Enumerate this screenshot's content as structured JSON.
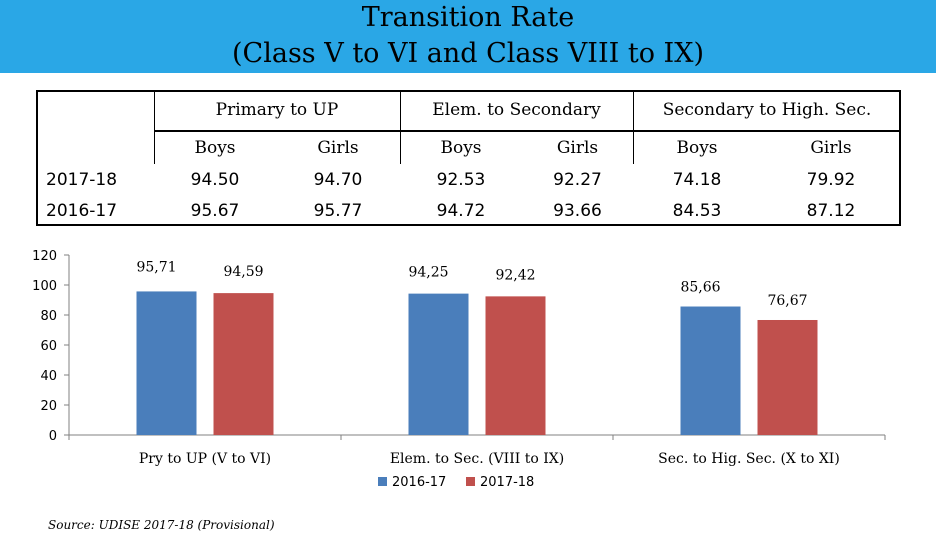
{
  "title": {
    "line1": "Transition Rate",
    "line2": "(Class V to VI and Class VIII to IX)"
  },
  "table": {
    "groups": [
      "Primary to UP",
      "Elem. to Secondary",
      "Secondary to High. Sec."
    ],
    "subheaders": [
      "Boys",
      "Girls",
      "Boys",
      "Girls",
      "Boys",
      "Girls"
    ],
    "rows": [
      {
        "year": "2017-18",
        "values": [
          "94.50",
          "94.70",
          "92.53",
          "92.27",
          "74.18",
          "79.92"
        ]
      },
      {
        "year": "2016-17",
        "values": [
          "95.67",
          "95.77",
          "94.72",
          "93.66",
          "84.53",
          "87.12"
        ]
      }
    ]
  },
  "chart_data": {
    "type": "bar",
    "categories": [
      "Pry to UP (V to VI)",
      "Elem. to Sec. (VIII to IX)",
      "Sec. to Hig. Sec. (X to XI)"
    ],
    "series": [
      {
        "name": "2016-17",
        "color": "#4a7ebb",
        "values": [
          95.71,
          94.25,
          85.66
        ],
        "labels": [
          "95,71",
          "94,25",
          "85,66"
        ]
      },
      {
        "name": "2017-18",
        "color": "#c0504d",
        "values": [
          94.59,
          92.42,
          76.67
        ],
        "labels": [
          "94,59",
          "92,42",
          "76,67"
        ]
      }
    ],
    "yticks": [
      "0",
      "20",
      "40",
      "60",
      "80",
      "100",
      "120"
    ],
    "ylim": [
      0,
      120
    ],
    "title": "",
    "xlabel": "",
    "ylabel": "",
    "legend": "bottom"
  },
  "source": "Source: UDISE 2017-18 (Provisional)"
}
